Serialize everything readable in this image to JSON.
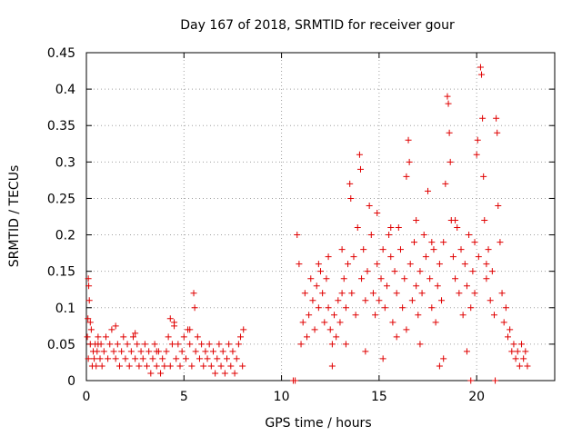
{
  "chart_data": {
    "type": "scatter",
    "title": "Day 167 of 2018, SRMTID for receiver gour",
    "xlabel": "GPS time / hours",
    "ylabel": "SRMTID / TECUs",
    "xlim": [
      0,
      24
    ],
    "ylim": [
      0,
      0.45
    ],
    "x_ticks": [
      0,
      5,
      10,
      15,
      20
    ],
    "x_tick_labels": [
      "0",
      "5",
      "10",
      "15",
      "20"
    ],
    "y_ticks": [
      0,
      0.05,
      0.1,
      0.15,
      0.2,
      0.25,
      0.3,
      0.35,
      0.4,
      0.45
    ],
    "y_tick_labels": [
      "0",
      "0.05",
      "0.1",
      "0.15",
      "0.2",
      "0.25",
      "0.3",
      "0.35",
      "0.4",
      "0.45"
    ],
    "grid": true,
    "marker": "+",
    "color": "#e00000",
    "series": [
      {
        "name": "SRMTID",
        "points": [
          [
            0.05,
            0.06
          ],
          [
            0.08,
            0.085
          ],
          [
            0.1,
            0.14
          ],
          [
            0.12,
            0.13
          ],
          [
            0.15,
            0.11
          ],
          [
            0.1,
            0.03
          ],
          [
            0.2,
            0.05
          ],
          [
            0.25,
            0.07
          ],
          [
            0.3,
            0.02
          ],
          [
            0.35,
            0.04
          ],
          [
            0.4,
            0.03
          ],
          [
            0.45,
            0.05
          ],
          [
            0.5,
            0.02
          ],
          [
            0.55,
            0.04
          ],
          [
            0.6,
            0.06
          ],
          [
            0.7,
            0.03
          ],
          [
            0.75,
            0.05
          ],
          [
            0.8,
            0.02
          ],
          [
            0.9,
            0.04
          ],
          [
            1.0,
            0.06
          ],
          [
            1.1,
            0.03
          ],
          [
            1.2,
            0.05
          ],
          [
            1.3,
            0.07
          ],
          [
            1.4,
            0.04
          ],
          [
            1.5,
            0.03
          ],
          [
            1.6,
            0.05
          ],
          [
            1.7,
            0.02
          ],
          [
            1.8,
            0.04
          ],
          [
            1.9,
            0.06
          ],
          [
            2.0,
            0.03
          ],
          [
            2.1,
            0.05
          ],
          [
            2.2,
            0.02
          ],
          [
            2.3,
            0.04
          ],
          [
            2.4,
            0.06
          ],
          [
            2.5,
            0.03
          ],
          [
            2.6,
            0.05
          ],
          [
            2.7,
            0.02
          ],
          [
            2.8,
            0.04
          ],
          [
            2.9,
            0.03
          ],
          [
            3.0,
            0.05
          ],
          [
            3.1,
            0.02
          ],
          [
            3.2,
            0.04
          ],
          [
            3.3,
            0.01
          ],
          [
            3.4,
            0.03
          ],
          [
            3.5,
            0.05
          ],
          [
            3.6,
            0.02
          ],
          [
            3.7,
            0.04
          ],
          [
            3.8,
            0.01
          ],
          [
            3.9,
            0.03
          ],
          [
            4.0,
            0.02
          ],
          [
            4.1,
            0.04
          ],
          [
            4.2,
            0.06
          ],
          [
            4.3,
            0.02
          ],
          [
            4.4,
            0.05
          ],
          [
            4.5,
            0.08
          ],
          [
            4.6,
            0.03
          ],
          [
            4.7,
            0.05
          ],
          [
            4.8,
            0.02
          ],
          [
            4.9,
            0.04
          ],
          [
            5.0,
            0.06
          ],
          [
            5.1,
            0.03
          ],
          [
            5.2,
            0.07
          ],
          [
            5.3,
            0.05
          ],
          [
            5.4,
            0.02
          ],
          [
            5.5,
            0.12
          ],
          [
            5.55,
            0.1
          ],
          [
            5.6,
            0.04
          ],
          [
            5.7,
            0.06
          ],
          [
            5.8,
            0.03
          ],
          [
            5.9,
            0.05
          ],
          [
            6.0,
            0.02
          ],
          [
            6.1,
            0.04
          ],
          [
            6.2,
            0.03
          ],
          [
            6.3,
            0.05
          ],
          [
            6.4,
            0.02
          ],
          [
            6.5,
            0.04
          ],
          [
            6.6,
            0.01
          ],
          [
            6.7,
            0.03
          ],
          [
            6.8,
            0.05
          ],
          [
            6.9,
            0.02
          ],
          [
            7.0,
            0.04
          ],
          [
            7.1,
            0.01
          ],
          [
            7.2,
            0.03
          ],
          [
            7.3,
            0.05
          ],
          [
            7.4,
            0.02
          ],
          [
            7.5,
            0.04
          ],
          [
            7.6,
            0.01
          ],
          [
            7.7,
            0.03
          ],
          [
            7.8,
            0.05
          ],
          [
            7.9,
            0.06
          ],
          [
            8.0,
            0.02
          ],
          [
            8.05,
            0.07
          ],
          [
            0.2,
            0.08
          ],
          [
            1.5,
            0.075
          ],
          [
            2.5,
            0.065
          ],
          [
            4.5,
            0.075
          ],
          [
            4.3,
            0.085
          ],
          [
            5.3,
            0.07
          ],
          [
            0.6,
            0.05
          ],
          [
            3.6,
            0.04
          ],
          [
            10.6,
            0.0
          ],
          [
            10.7,
            0.0
          ],
          [
            10.8,
            0.2
          ],
          [
            10.9,
            0.16
          ],
          [
            11.0,
            0.05
          ],
          [
            11.1,
            0.08
          ],
          [
            11.2,
            0.12
          ],
          [
            11.3,
            0.06
          ],
          [
            11.4,
            0.09
          ],
          [
            11.5,
            0.14
          ],
          [
            11.6,
            0.11
          ],
          [
            11.7,
            0.07
          ],
          [
            11.8,
            0.13
          ],
          [
            11.9,
            0.1
          ],
          [
            12.0,
            0.15
          ],
          [
            12.1,
            0.12
          ],
          [
            12.2,
            0.08
          ],
          [
            12.3,
            0.14
          ],
          [
            12.4,
            0.1
          ],
          [
            12.5,
            0.07
          ],
          [
            12.6,
            0.05
          ],
          [
            12.7,
            0.09
          ],
          [
            12.8,
            0.06
          ],
          [
            12.9,
            0.11
          ],
          [
            13.0,
            0.08
          ],
          [
            13.1,
            0.12
          ],
          [
            13.2,
            0.14
          ],
          [
            13.3,
            0.1
          ],
          [
            13.4,
            0.16
          ],
          [
            13.5,
            0.27
          ],
          [
            13.55,
            0.25
          ],
          [
            13.6,
            0.12
          ],
          [
            13.7,
            0.17
          ],
          [
            13.8,
            0.09
          ],
          [
            13.9,
            0.21
          ],
          [
            14.0,
            0.31
          ],
          [
            14.05,
            0.29
          ],
          [
            14.1,
            0.14
          ],
          [
            14.2,
            0.18
          ],
          [
            14.3,
            0.11
          ],
          [
            14.4,
            0.15
          ],
          [
            14.5,
            0.24
          ],
          [
            14.6,
            0.2
          ],
          [
            14.7,
            0.12
          ],
          [
            14.8,
            0.09
          ],
          [
            14.9,
            0.16
          ],
          [
            15.0,
            0.11
          ],
          [
            15.1,
            0.14
          ],
          [
            15.2,
            0.18
          ],
          [
            15.3,
            0.1
          ],
          [
            15.4,
            0.13
          ],
          [
            15.5,
            0.2
          ],
          [
            15.6,
            0.17
          ],
          [
            15.7,
            0.08
          ],
          [
            15.8,
            0.15
          ],
          [
            15.9,
            0.12
          ],
          [
            16.0,
            0.21
          ],
          [
            16.1,
            0.18
          ],
          [
            16.2,
            0.1
          ],
          [
            16.3,
            0.14
          ],
          [
            16.4,
            0.28
          ],
          [
            16.5,
            0.33
          ],
          [
            16.55,
            0.3
          ],
          [
            16.6,
            0.16
          ],
          [
            16.7,
            0.11
          ],
          [
            16.8,
            0.19
          ],
          [
            16.9,
            0.13
          ],
          [
            17.0,
            0.09
          ],
          [
            17.1,
            0.15
          ],
          [
            17.2,
            0.12
          ],
          [
            17.3,
            0.2
          ],
          [
            17.4,
            0.17
          ],
          [
            17.5,
            0.26
          ],
          [
            17.6,
            0.14
          ],
          [
            17.7,
            0.1
          ],
          [
            17.8,
            0.18
          ],
          [
            17.9,
            0.08
          ],
          [
            18.0,
            0.13
          ],
          [
            18.1,
            0.16
          ],
          [
            18.2,
            0.11
          ],
          [
            18.3,
            0.19
          ],
          [
            18.4,
            0.27
          ],
          [
            18.5,
            0.39
          ],
          [
            18.55,
            0.38
          ],
          [
            18.6,
            0.34
          ],
          [
            18.65,
            0.3
          ],
          [
            18.7,
            0.22
          ],
          [
            18.8,
            0.17
          ],
          [
            18.9,
            0.14
          ],
          [
            19.0,
            0.21
          ],
          [
            19.1,
            0.12
          ],
          [
            19.2,
            0.18
          ],
          [
            19.3,
            0.09
          ],
          [
            19.4,
            0.16
          ],
          [
            19.5,
            0.13
          ],
          [
            19.6,
            0.2
          ],
          [
            19.7,
            0.1
          ],
          [
            19.8,
            0.15
          ],
          [
            19.9,
            0.12
          ],
          [
            20.0,
            0.31
          ],
          [
            20.05,
            0.33
          ],
          [
            20.1,
            0.17
          ],
          [
            20.2,
            0.43
          ],
          [
            20.25,
            0.42
          ],
          [
            20.3,
            0.36
          ],
          [
            20.35,
            0.28
          ],
          [
            20.4,
            0.22
          ],
          [
            20.5,
            0.14
          ],
          [
            20.6,
            0.18
          ],
          [
            20.7,
            0.11
          ],
          [
            20.8,
            0.15
          ],
          [
            20.9,
            0.09
          ],
          [
            21.0,
            0.36
          ],
          [
            21.05,
            0.34
          ],
          [
            21.1,
            0.24
          ],
          [
            21.2,
            0.19
          ],
          [
            21.3,
            0.12
          ],
          [
            21.4,
            0.08
          ],
          [
            21.5,
            0.1
          ],
          [
            21.6,
            0.06
          ],
          [
            21.7,
            0.07
          ],
          [
            21.8,
            0.04
          ],
          [
            21.9,
            0.05
          ],
          [
            22.0,
            0.03
          ],
          [
            22.1,
            0.04
          ],
          [
            22.2,
            0.02
          ],
          [
            22.3,
            0.05
          ],
          [
            22.4,
            0.03
          ],
          [
            22.5,
            0.04
          ],
          [
            22.6,
            0.02
          ],
          [
            20.95,
            0.0
          ],
          [
            19.7,
            0.0
          ],
          [
            11.9,
            0.16
          ],
          [
            12.4,
            0.17
          ],
          [
            13.1,
            0.18
          ],
          [
            14.9,
            0.23
          ],
          [
            15.6,
            0.21
          ],
          [
            16.9,
            0.22
          ],
          [
            17.7,
            0.19
          ],
          [
            18.9,
            0.22
          ],
          [
            19.9,
            0.19
          ],
          [
            20.5,
            0.16
          ],
          [
            13.3,
            0.05
          ],
          [
            14.3,
            0.04
          ],
          [
            15.9,
            0.06
          ],
          [
            17.1,
            0.05
          ],
          [
            18.3,
            0.03
          ],
          [
            19.5,
            0.04
          ],
          [
            16.4,
            0.07
          ],
          [
            12.6,
            0.02
          ],
          [
            18.1,
            0.02
          ],
          [
            15.2,
            0.03
          ]
        ]
      }
    ]
  }
}
